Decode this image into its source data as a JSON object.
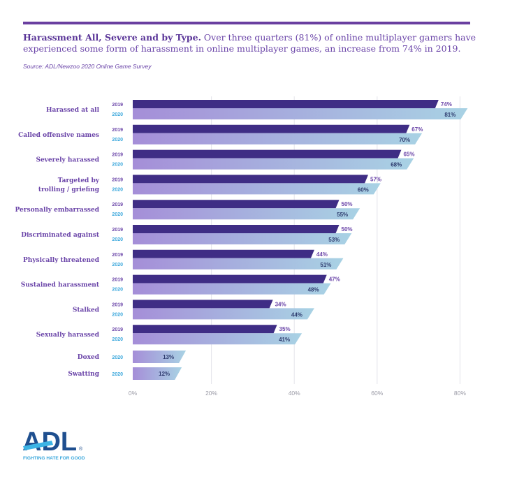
{
  "header": {
    "title_bold": "Harassment All, Severe and by Type.",
    "title_rest": " Over three quarters (81%) of online multiplayer gamers have experienced some form of harassment in online multiplayer games, an increase from 74% in 2019.",
    "source": "Source: ADL/Newzoo 2020 Online Game Survey"
  },
  "colors": {
    "accent": "#6a3fa0",
    "bar_2019": "#3f2d85",
    "bar_2020_start": "#a58ed8",
    "bar_2020_end": "#a8d2e4",
    "label_2019": "#6a44a8",
    "label_2020": "#3aa7dc",
    "value_2020": "#2e3b6e"
  },
  "chart_data": {
    "type": "bar",
    "orientation": "horizontal",
    "title": "Harassment All, Severe and by Type",
    "xlabel": "",
    "ylabel": "",
    "xlim": [
      0,
      80
    ],
    "x_ticks": [
      "0%",
      "20%",
      "40%",
      "60%",
      "80%"
    ],
    "grid": true,
    "categories": [
      {
        "label": [
          "Harassed at all"
        ],
        "v2019": 74,
        "v2020": 81
      },
      {
        "label": [
          "Called offensive names"
        ],
        "v2019": 67,
        "v2020": 70
      },
      {
        "label": [
          "Severely harassed"
        ],
        "v2019": 65,
        "v2020": 68
      },
      {
        "label": [
          "Targeted by",
          "trolling / griefing"
        ],
        "v2019": 57,
        "v2020": 60
      },
      {
        "label": [
          "Personally embarrassed"
        ],
        "v2019": 50,
        "v2020": 55
      },
      {
        "label": [
          "Discriminated against"
        ],
        "v2019": 50,
        "v2020": 53
      },
      {
        "label": [
          "Physically threatened"
        ],
        "v2019": 44,
        "v2020": 51
      },
      {
        "label": [
          "Sustained harassment"
        ],
        "v2019": 47,
        "v2020": 48
      },
      {
        "label": [
          "Stalked"
        ],
        "v2019": 34,
        "v2020": 44
      },
      {
        "label": [
          "Sexually harassed"
        ],
        "v2019": 35,
        "v2020": 41
      },
      {
        "label": [
          "Doxed"
        ],
        "v2019": null,
        "v2020": 13
      },
      {
        "label": [
          "Swatting"
        ],
        "v2019": null,
        "v2020": 12
      }
    ],
    "series": [
      {
        "name": "2019"
      },
      {
        "name": "2020"
      }
    ],
    "value_suffix": "%"
  },
  "logo": {
    "text": "ADL",
    "tagline": "FIGHTING HATE FOR GOOD",
    "registered": "®"
  }
}
